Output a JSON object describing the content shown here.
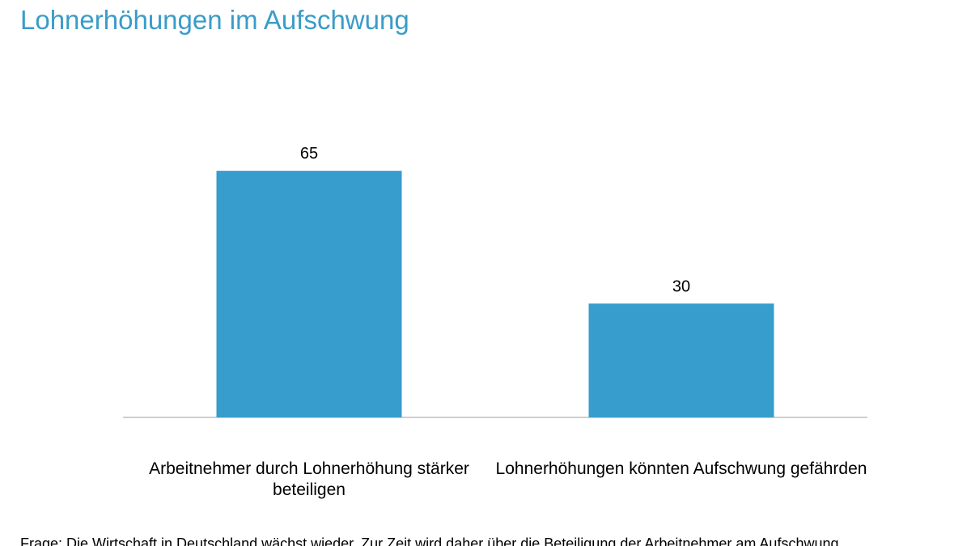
{
  "chart_data": {
    "type": "bar",
    "title": "Lohnerhöhungen im Aufschwung",
    "categories": [
      "Arbeitnehmer durch Lohnerhöhung stärker beteiligen",
      "Lohnerhöhungen könnten Aufschwung gefährden"
    ],
    "values": [
      65,
      30
    ],
    "color": "#379dcc",
    "ylim": [
      0,
      100
    ],
    "note": "Frage: Die Wirtschaft in Deutschland wächst wieder. Zur Zeit wird daher über die Beteiligung der Arbeitnehmer am Aufschwung"
  }
}
